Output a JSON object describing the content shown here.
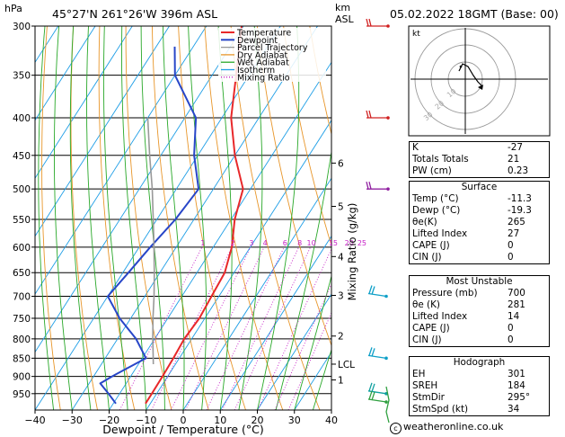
{
  "header": {
    "p_unit": "hPa",
    "location": "45°27'N  261°26'W  396m  ASL",
    "alt_unit_km": "km",
    "alt_unit_asl": "ASL",
    "date": "05.02.2022  18GMT  (Base: 00)"
  },
  "legend": [
    {
      "label": "Temperature",
      "color": "#e8282a"
    },
    {
      "label": "Dewpoint",
      "color": "#2846c8"
    },
    {
      "label": "Parcel Trajectory",
      "color": "#999999"
    },
    {
      "label": "Dry Adiabat",
      "color": "#e8962a"
    },
    {
      "label": "Wet Adiabat",
      "color": "#29a829"
    },
    {
      "label": "Isotherm",
      "color": "#1e9ee6"
    },
    {
      "label": "Mixing Ratio",
      "color": "#c61ec6"
    }
  ],
  "chart_data": {
    "type": "line",
    "title": "Skew-T log-P diagram",
    "xlabel": "Dewpoint / Temperature (°C)",
    "ylabel": "hPa",
    "y2label": "Mixing Ratio (g/kg)",
    "xlim": [
      -40,
      40
    ],
    "ylim": [
      300,
      1000
    ],
    "pressure_ticks": [
      300,
      350,
      400,
      450,
      500,
      550,
      600,
      650,
      700,
      750,
      800,
      850,
      900,
      950
    ],
    "temp_ticks": [
      -40,
      -30,
      -20,
      -10,
      0,
      10,
      20,
      30,
      40
    ],
    "temp_tick_labels": [
      "−40",
      "−30",
      "−20",
      "−10",
      "0",
      "10",
      "20",
      "30",
      "40"
    ],
    "altitude_km": [
      {
        "label": "6",
        "p": 461
      },
      {
        "label": "5",
        "p": 528
      },
      {
        "label": "4",
        "p": 618
      },
      {
        "label": "3",
        "p": 698
      },
      {
        "label": "2",
        "p": 793
      },
      {
        "label": "LCL",
        "p": 866
      },
      {
        "label": "1",
        "p": 910
      }
    ],
    "mixing_ratio_labels": [
      "1",
      "2",
      "3",
      "4",
      "6",
      "8",
      "10",
      "15",
      "20",
      "25"
    ],
    "series": [
      {
        "name": "Temperature",
        "points": [
          [
            300,
            -50.5
          ],
          [
            350,
            -43.5
          ],
          [
            400,
            -37.5
          ],
          [
            450,
            -30
          ],
          [
            500,
            -22
          ],
          [
            550,
            -19
          ],
          [
            600,
            -15
          ],
          [
            650,
            -12.5
          ],
          [
            700,
            -12
          ],
          [
            750,
            -11.5
          ],
          [
            800,
            -12
          ],
          [
            850,
            -11.6
          ],
          [
            900,
            -11.4
          ],
          [
            950,
            -11.3
          ],
          [
            980,
            -11.3
          ]
        ]
      },
      {
        "name": "Dewpoint",
        "points": [
          [
            320,
            -65
          ],
          [
            350,
            -60
          ],
          [
            400,
            -47
          ],
          [
            450,
            -41
          ],
          [
            500,
            -34
          ],
          [
            550,
            -35
          ],
          [
            600,
            -37
          ],
          [
            650,
            -38.5
          ],
          [
            700,
            -40
          ],
          [
            750,
            -33
          ],
          [
            800,
            -25
          ],
          [
            850,
            -19
          ],
          [
            900,
            -25
          ],
          [
            920,
            -27
          ],
          [
            950,
            -23
          ],
          [
            980,
            -19.3
          ]
        ]
      },
      {
        "name": "Parcel Trajectory",
        "points": [
          [
            866,
            -16
          ],
          [
            800,
            -20.5
          ],
          [
            750,
            -24
          ],
          [
            700,
            -27.5
          ],
          [
            650,
            -31.5
          ],
          [
            600,
            -36
          ],
          [
            550,
            -41
          ],
          [
            500,
            -46.5
          ],
          [
            450,
            -53
          ],
          [
            400,
            -60
          ]
        ]
      }
    ]
  },
  "hodograph": {
    "unit": "kt",
    "ring_labels": [
      "10",
      "20",
      "30"
    ]
  },
  "indices": [
    {
      "label": "K",
      "value": "-27"
    },
    {
      "label": "Totals Totals",
      "value": "21"
    },
    {
      "label": "PW (cm)",
      "value": "0.23"
    }
  ],
  "surface": {
    "title": "Surface",
    "rows": [
      {
        "label": "Temp (°C)",
        "value": "-11.3"
      },
      {
        "label": "Dewp (°C)",
        "value": "-19.3"
      },
      {
        "label": "θe(K)",
        "value": "265"
      },
      {
        "label": "Lifted Index",
        "value": "27"
      },
      {
        "label": "CAPE (J)",
        "value": "0"
      },
      {
        "label": "CIN (J)",
        "value": "0"
      }
    ]
  },
  "most_unstable": {
    "title": "Most Unstable",
    "rows": [
      {
        "label": "Pressure (mb)",
        "value": "700"
      },
      {
        "label": "θe (K)",
        "value": "281"
      },
      {
        "label": "Lifted Index",
        "value": "14"
      },
      {
        "label": "CAPE (J)",
        "value": "0"
      },
      {
        "label": "CIN (J)",
        "value": "0"
      }
    ]
  },
  "hodograph_table": {
    "title": "Hodograph",
    "rows": [
      {
        "label": "EH",
        "value": "301"
      },
      {
        "label": "SREH",
        "value": "184"
      },
      {
        "label": "StmDir",
        "value": "295°"
      },
      {
        "label": "StmSpd (kt)",
        "value": "34"
      }
    ]
  },
  "footer": {
    "copyright_symbol": "c",
    "site": "weatheronline.co.uk"
  }
}
